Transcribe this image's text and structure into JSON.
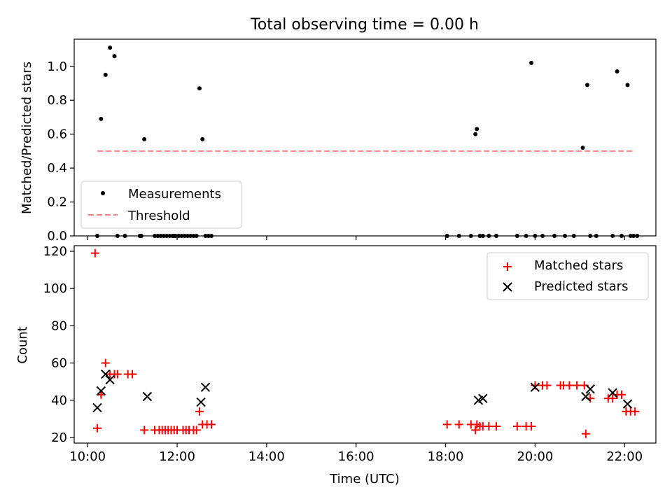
{
  "chart_data": [
    {
      "type": "scatter",
      "title": "Total observing time = 0.00 h",
      "xlabel": "",
      "ylabel": "Matched/Predicted stars",
      "ylim": [
        0,
        1.16
      ],
      "yticks": [
        "0.0",
        "0.2",
        "0.4",
        "0.6",
        "0.8",
        "1.0"
      ],
      "xlim": [
        "09:42",
        "22:42"
      ],
      "grid": false,
      "legend_position": "lower-left",
      "series": [
        {
          "name": "Measurements",
          "marker": "dot",
          "color": "#000000",
          "x": [
            "10:13",
            "10:18",
            "10:24",
            "10:30",
            "10:36",
            "10:40",
            "10:50",
            "11:16",
            "11:38",
            "11:56",
            "11:10",
            "11:12",
            "11:30",
            "11:34",
            "11:42",
            "11:46",
            "11:50",
            "11:54",
            "11:58",
            "12:02",
            "12:06",
            "12:10",
            "12:14",
            "12:18",
            "12:22",
            "12:26",
            "12:30",
            "12:34",
            "12:38",
            "12:42",
            "12:46",
            "18:02",
            "18:18",
            "18:34",
            "18:40",
            "18:42",
            "18:46",
            "18:50",
            "18:58",
            "19:08",
            "19:36",
            "19:48",
            "19:55",
            "20:00",
            "20:10",
            "20:26",
            "20:40",
            "20:52",
            "21:04",
            "21:10",
            "21:14",
            "21:22",
            "21:50",
            "21:56",
            "22:04",
            "22:08",
            "22:12",
            "22:17",
            "21:44"
          ],
          "y": [
            0,
            0.69,
            0.95,
            1.11,
            1.06,
            0,
            0,
            0.57,
            0,
            0,
            0,
            0,
            0,
            0,
            0,
            0,
            0,
            0,
            0,
            0,
            0,
            0,
            0,
            0,
            0,
            0,
            0.87,
            0.57,
            0,
            0,
            0,
            0,
            0,
            0,
            0.6,
            0.63,
            0,
            0,
            0,
            0,
            0,
            0,
            1.02,
            0,
            0,
            0,
            0,
            0,
            0.52,
            0.89,
            0,
            0,
            0.97,
            0,
            0.89,
            0,
            0,
            0,
            0
          ]
        },
        {
          "name": "Threshold",
          "style": "dashed",
          "color": "#ff8080",
          "x": [
            "10:13",
            "22:10"
          ],
          "y": [
            0.5,
            0.5
          ]
        }
      ]
    },
    {
      "type": "scatter",
      "title": "",
      "xlabel": "Time (UTC)",
      "ylabel": "Count",
      "ylim": [
        17,
        123
      ],
      "yticks": [
        "20",
        "40",
        "60",
        "80",
        "100",
        "120"
      ],
      "xlim": [
        "09:42",
        "22:42"
      ],
      "xticks": [
        "10:00",
        "12:00",
        "14:00",
        "16:00",
        "18:00",
        "20:00",
        "22:00"
      ],
      "grid": false,
      "legend_position": "top-right",
      "series": [
        {
          "name": "Matched stars",
          "marker": "plus",
          "color": "#ff0000",
          "x": [
            "10:10",
            "10:13",
            "10:18",
            "10:24",
            "10:30",
            "10:36",
            "10:40",
            "10:54",
            "11:00",
            "11:16",
            "11:30",
            "11:36",
            "11:40",
            "11:44",
            "11:48",
            "11:52",
            "11:56",
            "12:00",
            "12:08",
            "12:12",
            "12:16",
            "12:22",
            "12:26",
            "12:30",
            "12:34",
            "12:40",
            "12:46",
            "18:02",
            "18:18",
            "18:34",
            "18:40",
            "18:42",
            "18:46",
            "18:50",
            "18:58",
            "19:08",
            "19:36",
            "19:48",
            "19:55",
            "20:00",
            "20:10",
            "20:16",
            "20:34",
            "20:38",
            "20:46",
            "20:56",
            "21:06",
            "21:08",
            "21:14",
            "21:38",
            "21:44",
            "21:50",
            "21:56",
            "22:02",
            "22:08",
            "22:14"
          ],
          "y": [
            119,
            25,
            43,
            60,
            54,
            54,
            54,
            54,
            54,
            24,
            24,
            24,
            24,
            24,
            24,
            24,
            24,
            24,
            24,
            24,
            24,
            24,
            24,
            34,
            27,
            27,
            27,
            27,
            27,
            27,
            24,
            27,
            26,
            26,
            26,
            26,
            26,
            26,
            26,
            48,
            48,
            48,
            48,
            48,
            48,
            48,
            48,
            22,
            41,
            41,
            41,
            43,
            43,
            34,
            34,
            34
          ]
        },
        {
          "name": "Predicted stars",
          "marker": "x",
          "color": "#000000",
          "x": [
            "10:13",
            "10:18",
            "10:24",
            "10:30",
            "11:20",
            "12:32",
            "12:38",
            "18:44",
            "18:50",
            "20:00",
            "21:08",
            "21:14",
            "21:44",
            "22:04"
          ],
          "y": [
            36,
            45,
            54,
            51,
            42,
            39,
            47,
            40,
            41,
            47,
            42,
            46,
            44,
            38
          ]
        }
      ]
    }
  ]
}
